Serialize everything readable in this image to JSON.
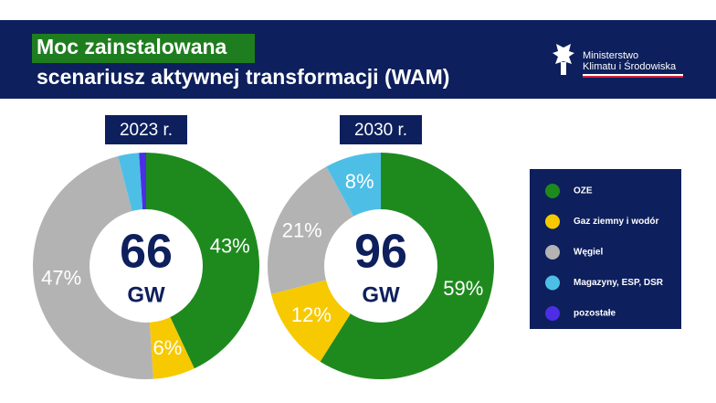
{
  "header": {
    "title_highlight": "Moc  zainstalowana",
    "title": "scenariusz aktywnej transformacji (WAM)",
    "logo_lines": [
      "Ministerstwo",
      "Klimatu i Środowiska"
    ]
  },
  "chart_data": [
    {
      "type": "pie",
      "title": "2023 r.",
      "total": 66,
      "unit": "GW",
      "categories": [
        "OZE",
        "Gaz ziemny i wodór",
        "Węgiel",
        "Magazyny, ESP, DSR",
        "pozostałe"
      ],
      "colors": [
        "#1e8a1e",
        "#f7c900",
        "#b3b3b3",
        "#4dbfe6",
        "#4b2ee6"
      ],
      "values": [
        43,
        6,
        47,
        3,
        1
      ],
      "value_labels": [
        "43%",
        "6%",
        "47%",
        null,
        null
      ]
    },
    {
      "type": "pie",
      "title": "2030 r.",
      "total": 96,
      "unit": "GW",
      "categories": [
        "OZE",
        "Gaz ziemny i wodór",
        "Węgiel",
        "Magazyny, ESP, DSR",
        "pozostałe"
      ],
      "colors": [
        "#1e8a1e",
        "#f7c900",
        "#b3b3b3",
        "#4dbfe6",
        "#4b2ee6"
      ],
      "values": [
        59,
        12,
        21,
        8,
        0
      ],
      "value_labels": [
        "59%",
        "12%",
        "21%",
        "8%",
        null
      ]
    }
  ]
}
